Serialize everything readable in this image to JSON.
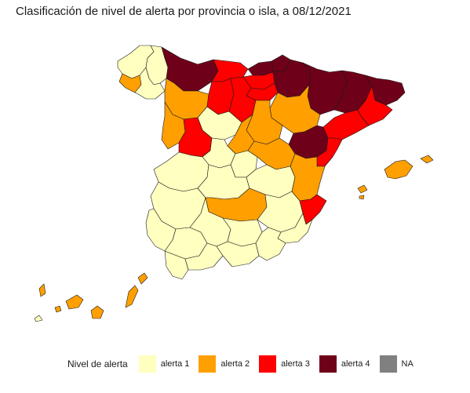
{
  "title": "Clasificación de nivel de alerta por provincia o isla, a 08/12/2021",
  "legend": {
    "title": "Nivel de alerta",
    "items": [
      {
        "level": "alerta 1",
        "color": "#ffffc0"
      },
      {
        "level": "alerta 2",
        "color": "#ff9f00"
      },
      {
        "level": "alerta 3",
        "color": "#ff0000"
      },
      {
        "level": "alerta 4",
        "color": "#6e0019"
      },
      {
        "level": "NA",
        "color": "#808080"
      }
    ]
  },
  "regions": [
    {
      "name": "A Coruña",
      "level": "alerta 1"
    },
    {
      "name": "Lugo",
      "level": "alerta 1"
    },
    {
      "name": "Ourense",
      "level": "alerta 1"
    },
    {
      "name": "Pontevedra",
      "level": "alerta 2"
    },
    {
      "name": "Asturias",
      "level": "alerta 4"
    },
    {
      "name": "Cantabria",
      "level": "alerta 3"
    },
    {
      "name": "Bizkaia",
      "level": "alerta 4"
    },
    {
      "name": "Gipuzkoa",
      "level": "alerta 4"
    },
    {
      "name": "Álava",
      "level": "alerta 3"
    },
    {
      "name": "Navarra",
      "level": "alerta 4"
    },
    {
      "name": "La Rioja",
      "level": "alerta 3"
    },
    {
      "name": "Huesca",
      "level": "alerta 4"
    },
    {
      "name": "Zaragoza",
      "level": "alerta 2"
    },
    {
      "name": "Teruel",
      "level": "alerta 4"
    },
    {
      "name": "Lleida",
      "level": "alerta 4"
    },
    {
      "name": "Girona",
      "level": "alerta 4"
    },
    {
      "name": "Barcelona",
      "level": "alerta 3"
    },
    {
      "name": "Tarragona",
      "level": "alerta 3"
    },
    {
      "name": "León",
      "level": "alerta 2"
    },
    {
      "name": "Palencia",
      "level": "alerta 3"
    },
    {
      "name": "Burgos",
      "level": "alerta 3"
    },
    {
      "name": "Zamora",
      "level": "alerta 2"
    },
    {
      "name": "Valladolid",
      "level": "alerta 1"
    },
    {
      "name": "Soria",
      "level": "alerta 2"
    },
    {
      "name": "Salamanca",
      "level": "alerta 3"
    },
    {
      "name": "Segovia",
      "level": "alerta 2"
    },
    {
      "name": "Ávila",
      "level": "alerta 1"
    },
    {
      "name": "Guadalajara",
      "level": "alerta 2"
    },
    {
      "name": "Madrid",
      "level": "alerta 1"
    },
    {
      "name": "Cáceres",
      "level": "alerta 1"
    },
    {
      "name": "Badajoz",
      "level": "alerta 1"
    },
    {
      "name": "Toledo",
      "level": "alerta 1"
    },
    {
      "name": "Cuenca",
      "level": "alerta 1"
    },
    {
      "name": "Ciudad Real",
      "level": "alerta 2"
    },
    {
      "name": "Albacete",
      "level": "alerta 1"
    },
    {
      "name": "Castellón",
      "level": "alerta 3"
    },
    {
      "name": "Valencia",
      "level": "alerta 2"
    },
    {
      "name": "Alicante",
      "level": "alerta 3"
    },
    {
      "name": "Murcia",
      "level": "alerta 1"
    },
    {
      "name": "Huelva",
      "level": "alerta 1"
    },
    {
      "name": "Sevilla",
      "level": "alerta 1"
    },
    {
      "name": "Córdoba",
      "level": "alerta 1"
    },
    {
      "name": "Jaén",
      "level": "alerta 1"
    },
    {
      "name": "Cádiz",
      "level": "alerta 1"
    },
    {
      "name": "Málaga",
      "level": "alerta 1"
    },
    {
      "name": "Granada",
      "level": "alerta 1"
    },
    {
      "name": "Almería",
      "level": "alerta 1"
    },
    {
      "name": "Mallorca",
      "level": "alerta 2"
    },
    {
      "name": "Menorca",
      "level": "alerta 2"
    },
    {
      "name": "Ibiza",
      "level": "alerta 2"
    },
    {
      "name": "Formentera",
      "level": "alerta 2"
    },
    {
      "name": "Lanzarote",
      "level": "alerta 2"
    },
    {
      "name": "Fuerteventura",
      "level": "alerta 2"
    },
    {
      "name": "Gran Canaria",
      "level": "alerta 2"
    },
    {
      "name": "Tenerife",
      "level": "alerta 2"
    },
    {
      "name": "La Gomera",
      "level": "alerta 2"
    },
    {
      "name": "La Palma",
      "level": "alerta 2"
    },
    {
      "name": "El Hierro",
      "level": "alerta 1"
    }
  ]
}
